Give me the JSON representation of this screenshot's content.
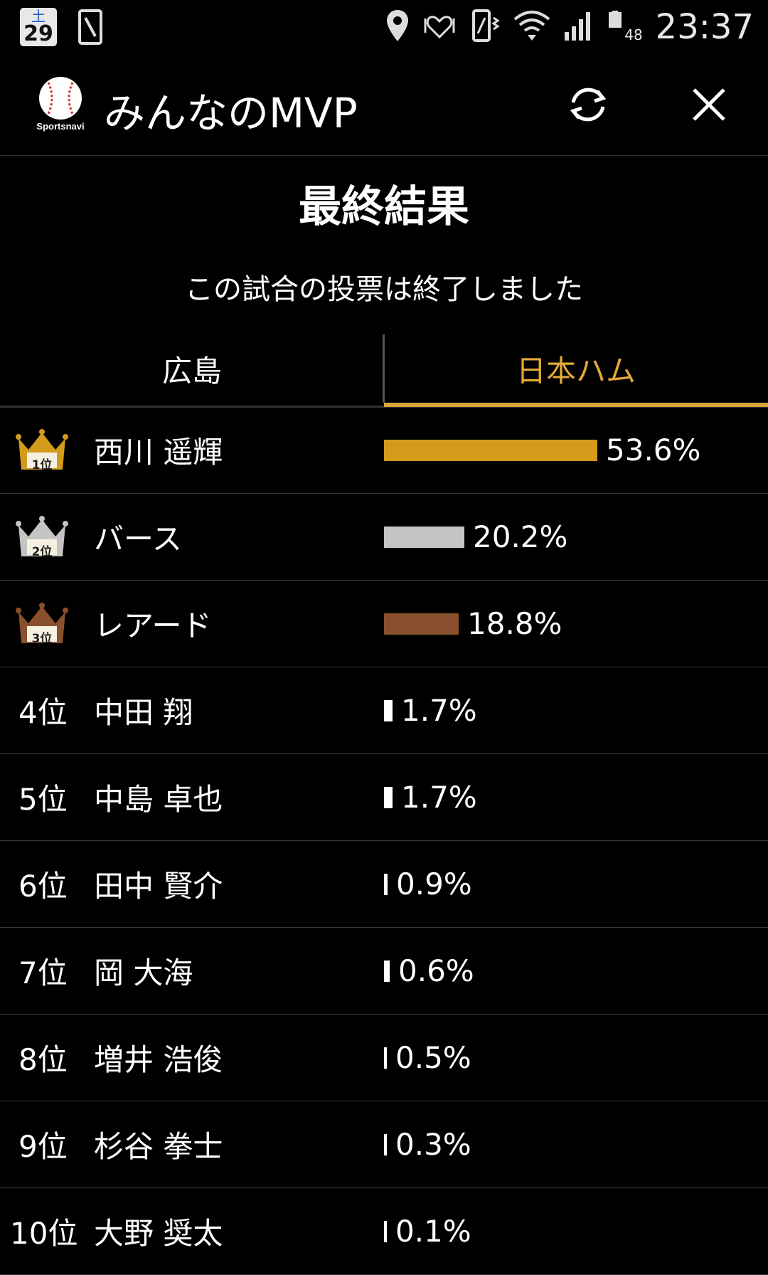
{
  "status_bar": {
    "calendar_day": "土",
    "calendar_date": "29",
    "battery_level": "48",
    "time": "23:37"
  },
  "app_bar": {
    "title": "みんなのMVP",
    "logo_text": "Sportsnavi"
  },
  "heading": {
    "title": "最終結果",
    "subtitle": "この試合の投票は終了しました"
  },
  "tabs": [
    {
      "label": "広島",
      "active": false
    },
    {
      "label": "日本ハム",
      "active": true
    }
  ],
  "colors": {
    "gold": "#d39a1c",
    "silver": "#c4c4c4",
    "bronze": "#8a4f2c",
    "white": "#ffffff",
    "tab_active": "#e3a83a"
  },
  "results": [
    {
      "rank": "1位",
      "medal": "gold",
      "name": "西川 遥輝",
      "percent": "53.6%",
      "value": 53.6
    },
    {
      "rank": "2位",
      "medal": "silver",
      "name": "バース",
      "percent": "20.2%",
      "value": 20.2
    },
    {
      "rank": "3位",
      "medal": "bronze",
      "name": "レアード",
      "percent": "18.8%",
      "value": 18.8
    },
    {
      "rank": "4位",
      "medal": "",
      "name": "中田 翔",
      "percent": "1.7%",
      "value": 1.7
    },
    {
      "rank": "5位",
      "medal": "",
      "name": "中島 卓也",
      "percent": "1.7%",
      "value": 1.7
    },
    {
      "rank": "6位",
      "medal": "",
      "name": "田中 賢介",
      "percent": "0.9%",
      "value": 0.9
    },
    {
      "rank": "7位",
      "medal": "",
      "name": "岡 大海",
      "percent": "0.6%",
      "value": 0.6
    },
    {
      "rank": "8位",
      "medal": "",
      "name": "増井 浩俊",
      "percent": "0.5%",
      "value": 0.5
    },
    {
      "rank": "9位",
      "medal": "",
      "name": "杉谷 拳士",
      "percent": "0.3%",
      "value": 0.3
    },
    {
      "rank": "10位",
      "medal": "",
      "name": "大野 奨太",
      "percent": "0.1%",
      "value": 0.1
    }
  ]
}
